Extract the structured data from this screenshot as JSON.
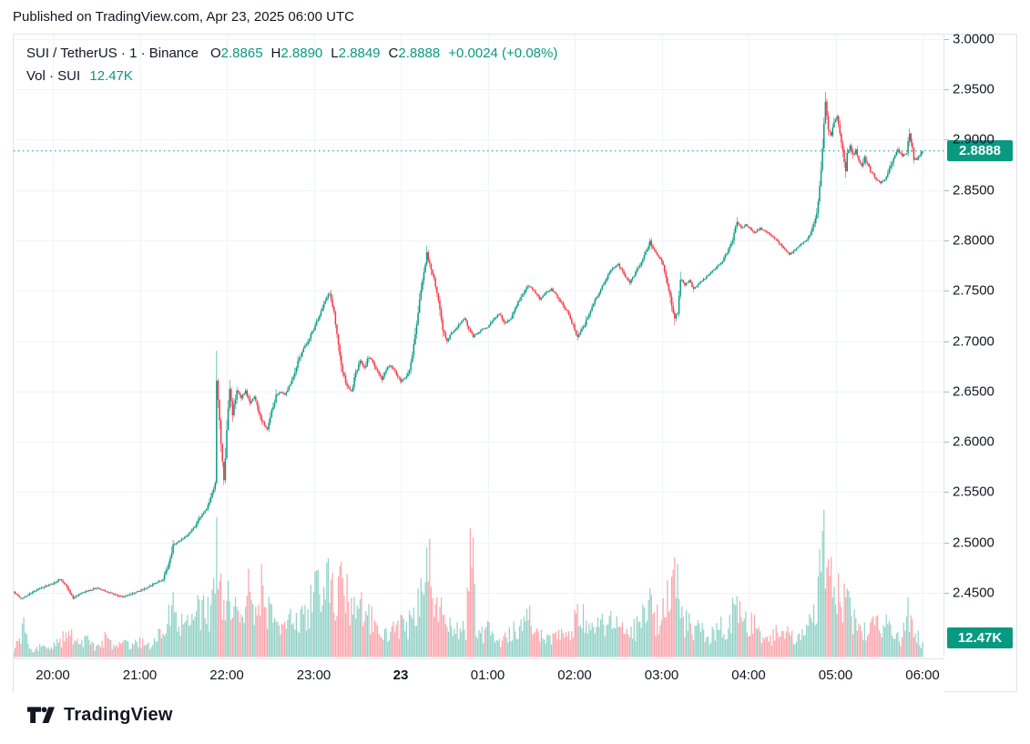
{
  "published_bar": {
    "text": "Published on TradingView.com, Apr 23, 2025 06:00 UTC"
  },
  "legend": {
    "symbol_line": {
      "title": "SUI / TetherUS · 1 · Binance",
      "ohlc": [
        {
          "label": "O",
          "value": "2.8865"
        },
        {
          "label": "H",
          "value": "2.8890"
        },
        {
          "label": "L",
          "value": "2.8849"
        },
        {
          "label": "C",
          "value": "2.8888"
        }
      ],
      "change": "+0.0024 (+0.08%)"
    },
    "volume_line": {
      "label": "Vol · SUI",
      "value": "12.47K"
    }
  },
  "price_scale": {
    "last_price_label": "2.8888",
    "last_volume_label": "12.47K"
  },
  "time_scale": {
    "labels": [
      {
        "text": "20:00",
        "bold": false
      },
      {
        "text": "21:00",
        "bold": false
      },
      {
        "text": "22:00",
        "bold": false
      },
      {
        "text": "23:00",
        "bold": false
      },
      {
        "text": "23",
        "bold": true
      },
      {
        "text": "01:00",
        "bold": false
      },
      {
        "text": "02:00",
        "bold": false
      },
      {
        "text": "03:00",
        "bold": false
      },
      {
        "text": "04:00",
        "bold": false
      },
      {
        "text": "05:00",
        "bold": false
      },
      {
        "text": "06:00",
        "bold": false
      }
    ]
  },
  "footer": {
    "brand": "TradingView"
  },
  "colors": {
    "up": "#089981",
    "down": "#f23645",
    "vol_up": "rgba(8,153,129,0.45)",
    "vol_down": "rgba(242,54,69,0.45)",
    "grid": "#f0f3fa",
    "border": "#e0e3eb",
    "text": "#131722",
    "badge_bg": "#089981",
    "badge_text": "#ffffff",
    "price_line": "#089981"
  },
  "chart_data": {
    "type": "candlestick_with_volume",
    "symbol": "SUI / TetherUS",
    "exchange": "Binance",
    "interval_minutes": 1,
    "session_start": "19:33",
    "session_end": "06:00",
    "last_candle": {
      "o": 2.8865,
      "h": 2.889,
      "l": 2.8849,
      "c": 2.8888,
      "change": 0.0024,
      "change_pct": 0.08
    },
    "last_volume_k": 12.47,
    "price_line_value": 2.8888,
    "y_axis": {
      "ticks": [
        3.0,
        2.95,
        2.9,
        2.85,
        2.8,
        2.75,
        2.7,
        2.65,
        2.6,
        2.55,
        2.5,
        2.45
      ],
      "grid": true
    },
    "x_axis": {
      "hour_ticks": [
        "20:00",
        "21:00",
        "22:00",
        "23:00",
        "00:00",
        "01:00",
        "02:00",
        "03:00",
        "04:00",
        "05:00",
        "06:00"
      ],
      "grid": true
    },
    "price_path": [
      [
        "19:33",
        2.451
      ],
      [
        "19:38",
        2.444
      ],
      [
        "19:45",
        2.45
      ],
      [
        "19:52",
        2.455
      ],
      [
        "20:00",
        2.459
      ],
      [
        "20:05",
        2.464
      ],
      [
        "20:09",
        2.458
      ],
      [
        "20:14",
        2.445
      ],
      [
        "20:19",
        2.449
      ],
      [
        "20:24",
        2.452
      ],
      [
        "20:30",
        2.455
      ],
      [
        "20:36",
        2.452
      ],
      [
        "20:42",
        2.449
      ],
      [
        "20:48",
        2.446
      ],
      [
        "20:54",
        2.449
      ],
      [
        "21:00",
        2.452
      ],
      [
        "21:06",
        2.456
      ],
      [
        "21:12",
        2.461
      ],
      [
        "21:16",
        2.463
      ],
      [
        "21:20",
        2.478
      ],
      [
        "21:23",
        2.498
      ],
      [
        "21:28",
        2.502
      ],
      [
        "21:33",
        2.508
      ],
      [
        "21:38",
        2.516
      ],
      [
        "21:42",
        2.526
      ],
      [
        "21:46",
        2.533
      ],
      [
        "21:50",
        2.548
      ],
      [
        "21:52",
        2.557
      ],
      [
        "21:53",
        2.66
      ],
      [
        "21:54",
        2.64
      ],
      [
        "21:56",
        2.598
      ],
      [
        "21:58",
        2.56
      ],
      [
        "22:00",
        2.612
      ],
      [
        "22:02",
        2.652
      ],
      [
        "22:04",
        2.628
      ],
      [
        "22:07",
        2.65
      ],
      [
        "22:10",
        2.643
      ],
      [
        "22:13",
        2.65
      ],
      [
        "22:16",
        2.638
      ],
      [
        "22:19",
        2.645
      ],
      [
        "22:22",
        2.63
      ],
      [
        "22:25",
        2.618
      ],
      [
        "22:28",
        2.613
      ],
      [
        "22:31",
        2.63
      ],
      [
        "22:34",
        2.645
      ],
      [
        "22:37",
        2.65
      ],
      [
        "22:40",
        2.647
      ],
      [
        "22:44",
        2.658
      ],
      [
        "22:48",
        2.675
      ],
      [
        "22:52",
        2.69
      ],
      [
        "22:56",
        2.7
      ],
      [
        "23:00",
        2.712
      ],
      [
        "23:04",
        2.726
      ],
      [
        "23:08",
        2.74
      ],
      [
        "23:11",
        2.748
      ],
      [
        "23:14",
        2.728
      ],
      [
        "23:17",
        2.695
      ],
      [
        "23:20",
        2.668
      ],
      [
        "23:23",
        2.655
      ],
      [
        "23:26",
        2.65
      ],
      [
        "23:29",
        2.668
      ],
      [
        "23:32",
        2.68
      ],
      [
        "23:35",
        2.673
      ],
      [
        "23:38",
        2.685
      ],
      [
        "23:41",
        2.678
      ],
      [
        "23:44",
        2.67
      ],
      [
        "23:47",
        2.662
      ],
      [
        "23:50",
        2.672
      ],
      [
        "23:53",
        2.676
      ],
      [
        "23:56",
        2.67
      ],
      [
        "00:00",
        2.66
      ],
      [
        "00:03",
        2.663
      ],
      [
        "00:06",
        2.672
      ],
      [
        "00:09",
        2.695
      ],
      [
        "00:12",
        2.728
      ],
      [
        "00:15",
        2.762
      ],
      [
        "00:18",
        2.786
      ],
      [
        "00:20",
        2.776
      ],
      [
        "00:23",
        2.76
      ],
      [
        "00:26",
        2.742
      ],
      [
        "00:29",
        2.712
      ],
      [
        "00:32",
        2.7
      ],
      [
        "00:35",
        2.708
      ],
      [
        "00:38",
        2.712
      ],
      [
        "00:41",
        2.718
      ],
      [
        "00:44",
        2.722
      ],
      [
        "00:47",
        2.712
      ],
      [
        "00:50",
        2.705
      ],
      [
        "00:53",
        2.708
      ],
      [
        "00:56",
        2.712
      ],
      [
        "01:00",
        2.714
      ],
      [
        "01:04",
        2.722
      ],
      [
        "01:08",
        2.727
      ],
      [
        "01:12",
        2.718
      ],
      [
        "01:16",
        2.722
      ],
      [
        "01:20",
        2.736
      ],
      [
        "01:24",
        2.746
      ],
      [
        "01:28",
        2.756
      ],
      [
        "01:32",
        2.75
      ],
      [
        "01:36",
        2.742
      ],
      [
        "01:40",
        2.748
      ],
      [
        "01:44",
        2.752
      ],
      [
        "01:48",
        2.744
      ],
      [
        "01:52",
        2.736
      ],
      [
        "01:56",
        2.726
      ],
      [
        "02:00",
        2.712
      ],
      [
        "02:02",
        2.704
      ],
      [
        "02:06",
        2.714
      ],
      [
        "02:10",
        2.726
      ],
      [
        "02:14",
        2.74
      ],
      [
        "02:18",
        2.752
      ],
      [
        "02:22",
        2.762
      ],
      [
        "02:26",
        2.772
      ],
      [
        "02:30",
        2.776
      ],
      [
        "02:34",
        2.766
      ],
      [
        "02:38",
        2.758
      ],
      [
        "02:42",
        2.768
      ],
      [
        "02:46",
        2.778
      ],
      [
        "02:50",
        2.792
      ],
      [
        "02:52",
        2.799
      ],
      [
        "02:55",
        2.79
      ],
      [
        "02:58",
        2.784
      ],
      [
        "03:01",
        2.776
      ],
      [
        "03:04",
        2.758
      ],
      [
        "03:07",
        2.735
      ],
      [
        "03:09",
        2.722
      ],
      [
        "03:11",
        2.728
      ],
      [
        "03:13",
        2.762
      ],
      [
        "03:16",
        2.756
      ],
      [
        "03:19",
        2.76
      ],
      [
        "03:22",
        2.752
      ],
      [
        "03:25",
        2.756
      ],
      [
        "03:28",
        2.76
      ],
      [
        "03:31",
        2.764
      ],
      [
        "03:34",
        2.768
      ],
      [
        "03:37",
        2.772
      ],
      [
        "03:40",
        2.776
      ],
      [
        "03:43",
        2.782
      ],
      [
        "03:46",
        2.79
      ],
      [
        "03:49",
        2.8
      ],
      [
        "03:52",
        2.818
      ],
      [
        "03:55",
        2.812
      ],
      [
        "03:58",
        2.816
      ],
      [
        "04:01",
        2.812
      ],
      [
        "04:04",
        2.808
      ],
      [
        "04:08",
        2.812
      ],
      [
        "04:12",
        2.809
      ],
      [
        "04:16",
        2.804
      ],
      [
        "04:20",
        2.799
      ],
      [
        "04:24",
        2.792
      ],
      [
        "04:28",
        2.786
      ],
      [
        "04:32",
        2.79
      ],
      [
        "04:36",
        2.796
      ],
      [
        "04:40",
        2.801
      ],
      [
        "04:43",
        2.808
      ],
      [
        "04:46",
        2.82
      ],
      [
        "04:48",
        2.838
      ],
      [
        "04:50",
        2.87
      ],
      [
        "04:52",
        2.915
      ],
      [
        "04:53",
        2.937
      ],
      [
        "04:55",
        2.912
      ],
      [
        "04:57",
        2.905
      ],
      [
        "04:59",
        2.918
      ],
      [
        "05:01",
        2.924
      ],
      [
        "05:03",
        2.908
      ],
      [
        "05:05",
        2.888
      ],
      [
        "05:07",
        2.87
      ],
      [
        "05:08",
        2.885
      ],
      [
        "05:10",
        2.893
      ],
      [
        "05:12",
        2.884
      ],
      [
        "05:14",
        2.89
      ],
      [
        "05:16",
        2.879
      ],
      [
        "05:18",
        2.874
      ],
      [
        "05:20",
        2.882
      ],
      [
        "05:22",
        2.875
      ],
      [
        "05:24",
        2.869
      ],
      [
        "05:26",
        2.866
      ],
      [
        "05:28",
        2.861
      ],
      [
        "05:31",
        2.857
      ],
      [
        "05:34",
        2.86
      ],
      [
        "05:37",
        2.87
      ],
      [
        "05:40",
        2.882
      ],
      [
        "05:43",
        2.89
      ],
      [
        "05:46",
        2.884
      ],
      [
        "05:49",
        2.886
      ],
      [
        "05:51",
        2.908
      ],
      [
        "05:52",
        2.898
      ],
      [
        "05:54",
        2.882
      ],
      [
        "05:56",
        2.88
      ],
      [
        "05:58",
        2.885
      ],
      [
        "06:00",
        2.8888
      ]
    ],
    "volume_path_k": [
      [
        "19:33",
        4
      ],
      [
        "19:40",
        26
      ],
      [
        "19:45",
        6
      ],
      [
        "19:52",
        8
      ],
      [
        "20:00",
        9
      ],
      [
        "20:06",
        14
      ],
      [
        "20:12",
        22
      ],
      [
        "20:18",
        10
      ],
      [
        "20:24",
        14
      ],
      [
        "20:30",
        8
      ],
      [
        "20:36",
        16
      ],
      [
        "20:42",
        9
      ],
      [
        "20:48",
        12
      ],
      [
        "20:54",
        9
      ],
      [
        "21:00",
        13
      ],
      [
        "21:06",
        10
      ],
      [
        "21:12",
        14
      ],
      [
        "21:18",
        34
      ],
      [
        "21:23",
        48
      ],
      [
        "21:28",
        30
      ],
      [
        "21:33",
        26
      ],
      [
        "21:38",
        34
      ],
      [
        "21:42",
        40
      ],
      [
        "21:47",
        36
      ],
      [
        "21:50",
        44
      ],
      [
        "21:53",
        110
      ],
      [
        "21:55",
        55
      ],
      [
        "21:58",
        48
      ],
      [
        "22:00",
        66
      ],
      [
        "22:03",
        44
      ],
      [
        "22:06",
        38
      ],
      [
        "22:09",
        52
      ],
      [
        "22:12",
        36
      ],
      [
        "22:15",
        56
      ],
      [
        "22:18",
        38
      ],
      [
        "22:21",
        48
      ],
      [
        "22:24",
        60
      ],
      [
        "22:27",
        40
      ],
      [
        "22:30",
        34
      ],
      [
        "22:34",
        28
      ],
      [
        "22:38",
        30
      ],
      [
        "22:42",
        26
      ],
      [
        "22:46",
        32
      ],
      [
        "22:50",
        28
      ],
      [
        "22:54",
        34
      ],
      [
        "22:58",
        44
      ],
      [
        "23:02",
        58
      ],
      [
        "23:06",
        40
      ],
      [
        "23:10",
        62
      ],
      [
        "23:14",
        48
      ],
      [
        "23:18",
        72
      ],
      [
        "23:22",
        52
      ],
      [
        "23:26",
        42
      ],
      [
        "23:30",
        36
      ],
      [
        "23:34",
        42
      ],
      [
        "23:38",
        32
      ],
      [
        "23:42",
        28
      ],
      [
        "23:46",
        26
      ],
      [
        "23:50",
        24
      ],
      [
        "23:54",
        22
      ],
      [
        "23:58",
        26
      ],
      [
        "00:02",
        24
      ],
      [
        "00:06",
        28
      ],
      [
        "00:10",
        34
      ],
      [
        "00:14",
        52
      ],
      [
        "00:18",
        94
      ],
      [
        "00:22",
        48
      ],
      [
        "00:26",
        40
      ],
      [
        "00:30",
        34
      ],
      [
        "00:34",
        26
      ],
      [
        "00:38",
        22
      ],
      [
        "00:42",
        20
      ],
      [
        "00:45",
        24
      ],
      [
        "00:49",
        108
      ],
      [
        "00:52",
        30
      ],
      [
        "00:56",
        18
      ],
      [
        "01:00",
        22
      ],
      [
        "01:05",
        17
      ],
      [
        "01:10",
        14
      ],
      [
        "01:15",
        18
      ],
      [
        "01:20",
        24
      ],
      [
        "01:25",
        28
      ],
      [
        "01:30",
        32
      ],
      [
        "01:35",
        22
      ],
      [
        "01:40",
        17
      ],
      [
        "01:45",
        14
      ],
      [
        "01:50",
        18
      ],
      [
        "01:55",
        16
      ],
      [
        "02:00",
        32
      ],
      [
        "02:04",
        46
      ],
      [
        "02:08",
        26
      ],
      [
        "02:12",
        22
      ],
      [
        "02:16",
        26
      ],
      [
        "02:20",
        30
      ],
      [
        "02:24",
        26
      ],
      [
        "02:28",
        34
      ],
      [
        "02:32",
        24
      ],
      [
        "02:36",
        21
      ],
      [
        "02:40",
        22
      ],
      [
        "02:44",
        26
      ],
      [
        "02:48",
        38
      ],
      [
        "02:52",
        44
      ],
      [
        "02:56",
        30
      ],
      [
        "03:00",
        36
      ],
      [
        "03:04",
        48
      ],
      [
        "03:08",
        66
      ],
      [
        "03:12",
        52
      ],
      [
        "03:16",
        30
      ],
      [
        "03:20",
        26
      ],
      [
        "03:25",
        22
      ],
      [
        "03:30",
        19
      ],
      [
        "03:35",
        18
      ],
      [
        "03:40",
        24
      ],
      [
        "03:45",
        26
      ],
      [
        "03:50",
        38
      ],
      [
        "03:55",
        42
      ],
      [
        "04:00",
        30
      ],
      [
        "04:05",
        24
      ],
      [
        "04:10",
        19
      ],
      [
        "04:15",
        17
      ],
      [
        "04:20",
        21
      ],
      [
        "04:25",
        19
      ],
      [
        "04:30",
        17
      ],
      [
        "04:35",
        16
      ],
      [
        "04:40",
        22
      ],
      [
        "04:44",
        34
      ],
      [
        "04:47",
        48
      ],
      [
        "04:50",
        80
      ],
      [
        "04:52",
        96
      ],
      [
        "04:53",
        86
      ],
      [
        "04:55",
        70
      ],
      [
        "04:58",
        62
      ],
      [
        "05:01",
        52
      ],
      [
        "05:04",
        46
      ],
      [
        "05:07",
        56
      ],
      [
        "05:10",
        36
      ],
      [
        "05:14",
        26
      ],
      [
        "05:18",
        22
      ],
      [
        "05:22",
        24
      ],
      [
        "05:26",
        26
      ],
      [
        "05:30",
        28
      ],
      [
        "05:34",
        32
      ],
      [
        "05:38",
        22
      ],
      [
        "05:42",
        18
      ],
      [
        "05:46",
        16
      ],
      [
        "05:50",
        40
      ],
      [
        "05:53",
        26
      ],
      [
        "05:56",
        17
      ],
      [
        "06:00",
        12.47
      ]
    ]
  }
}
